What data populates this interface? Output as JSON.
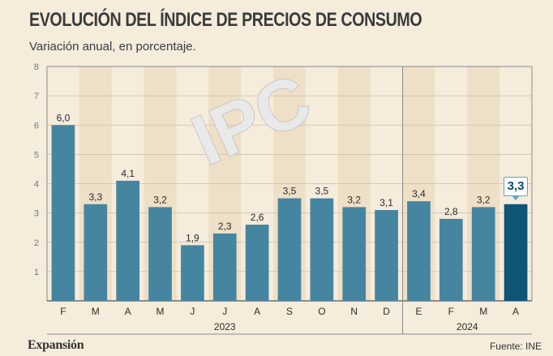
{
  "title": "EVOLUCIÓN DEL ÍNDICE DE PRECIOS DE CONSUMO",
  "subtitle": "Variación anual, en porcentaje.",
  "watermark": "IPC",
  "brand": "Expansión",
  "source": "Fuente: INE",
  "colors": {
    "background": "#f6ecdc",
    "bar": "#4585a0",
    "bar_highlight": "#0f5576",
    "stripe": "#eedfc7",
    "axis": "#8a8a8a",
    "label": "#2b2b2b"
  },
  "chart_data": {
    "type": "bar",
    "categories": [
      "F",
      "M",
      "A",
      "M",
      "J",
      "J",
      "A",
      "S",
      "O",
      "N",
      "D",
      "E",
      "F",
      "M",
      "A"
    ],
    "values": [
      6.0,
      3.3,
      4.1,
      3.2,
      1.9,
      2.3,
      2.6,
      3.5,
      3.5,
      3.2,
      3.1,
      3.4,
      2.8,
      3.2,
      3.3
    ],
    "value_labels": [
      "6,0",
      "3,3",
      "4,1",
      "3,2",
      "1,9",
      "2,3",
      "2,6",
      "3,5",
      "3,5",
      "3,2",
      "3,1",
      "3,4",
      "2,8",
      "3,2",
      "3,3"
    ],
    "highlight_index": 14,
    "year_groups": [
      {
        "label": "2023",
        "start": 0,
        "end": 10
      },
      {
        "label": "2024",
        "start": 11,
        "end": 14
      }
    ],
    "ylim": [
      0,
      8
    ],
    "yticks": [
      1,
      2,
      3,
      4,
      5,
      6,
      7,
      8
    ],
    "grid": true,
    "xlabel": "",
    "ylabel": ""
  }
}
